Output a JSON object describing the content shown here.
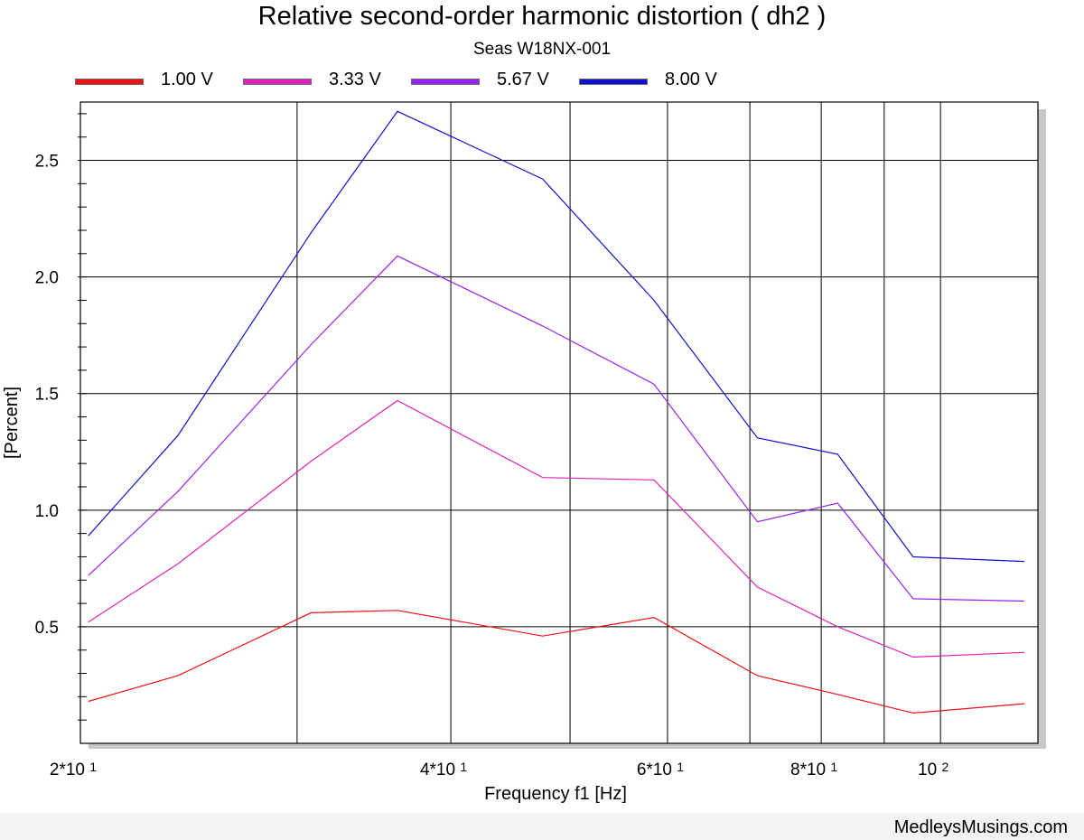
{
  "chart_data": {
    "type": "line",
    "title": "Relative second-order harmonic distortion  ( dh2 )",
    "subtitle": "Seas W18NX-001",
    "xlabel": "Frequency f1  [Hz]",
    "ylabel": "[Percent]",
    "x_scale": "log",
    "xlim": [
      20,
      120
    ],
    "ylim": [
      0.0,
      2.75
    ],
    "grid": true,
    "legend_position": "top",
    "x": [
      20.3,
      24.0,
      30.8,
      36.2,
      47.5,
      58.5,
      71.0,
      82.5,
      95.0,
      117.0
    ],
    "x_ticks": [
      {
        "value": 20,
        "base": "2*10",
        "exp": "1"
      },
      {
        "value": 40,
        "base": "4*10",
        "exp": "1"
      },
      {
        "value": 60,
        "base": "6*10",
        "exp": "1"
      },
      {
        "value": 80,
        "base": "8*10",
        "exp": "1"
      },
      {
        "value": 100,
        "base": "10",
        "exp": "2"
      }
    ],
    "x_gridlines": [
      20,
      30,
      40,
      50,
      60,
      70,
      80,
      90,
      100
    ],
    "y_ticks": [
      "0.5",
      "1.0",
      "1.5",
      "2.0",
      "2.5"
    ],
    "series": [
      {
        "name": "1.00 V",
        "color": "#ee1111",
        "values": [
          0.18,
          0.29,
          0.56,
          0.57,
          0.46,
          0.54,
          0.29,
          0.21,
          0.13,
          0.17
        ]
      },
      {
        "name": "3.33 V",
        "color": "#dd22bb",
        "values": [
          0.52,
          0.77,
          1.21,
          1.47,
          1.14,
          1.13,
          0.67,
          0.5,
          0.37,
          0.39
        ]
      },
      {
        "name": "5.67 V",
        "color": "#9922ee",
        "values": [
          0.72,
          1.08,
          1.71,
          2.09,
          1.79,
          1.54,
          0.95,
          1.03,
          0.62,
          0.61
        ]
      },
      {
        "name": "8.00 V",
        "color": "#1111cc",
        "values": [
          0.89,
          1.32,
          2.19,
          2.71,
          2.42,
          1.9,
          1.31,
          1.24,
          0.8,
          0.78
        ]
      }
    ]
  },
  "footer": {
    "watermark": "MedleysMusings.com"
  }
}
